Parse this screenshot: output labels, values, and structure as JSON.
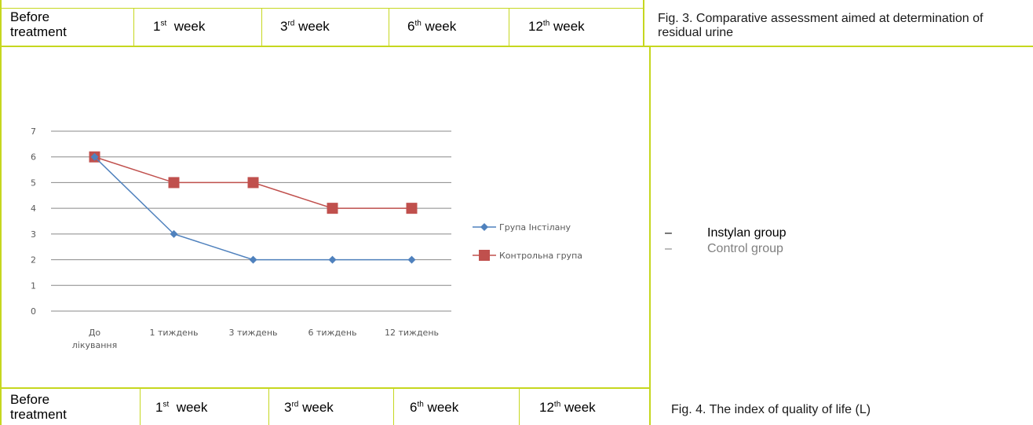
{
  "top_row": {
    "cells": [
      {
        "line1": "Before",
        "line2": "treatment"
      },
      {
        "num": "1",
        "sup": "st",
        "word": "week"
      },
      {
        "num": "3",
        "sup": "rd",
        "word": "week"
      },
      {
        "num": "6",
        "sup": "th",
        "word": "week"
      },
      {
        "num": "12",
        "sup": "th",
        "word": "week"
      }
    ],
    "caption": "Fig. 3. Comparative assessment aimed at determination of residual urine"
  },
  "bottom_row": {
    "cells": [
      {
        "line1": "Before",
        "line2": "treatment"
      },
      {
        "num": "1",
        "sup": "st",
        "word": "week"
      },
      {
        "num": "3",
        "sup": "rd",
        "word": "week"
      },
      {
        "num": "6",
        "sup": "th",
        "word": "week"
      },
      {
        "num": "12",
        "sup": "th",
        "word": "week"
      }
    ],
    "caption": "Fig. 4. The index of quality of life (L)"
  },
  "legend_translation": {
    "items": [
      {
        "dash": "–",
        "label": "Instylan group",
        "color": "#000000"
      },
      {
        "dash": "–",
        "label": "Control group",
        "color": "#808080"
      }
    ]
  },
  "chart_data": {
    "type": "line",
    "categories": [
      "До лікування",
      "1 тиждень",
      "3 тиждень",
      "6 тиждень",
      "12 тиждень"
    ],
    "category_lines": [
      [
        "До",
        "лікування"
      ],
      [
        "1 тиждень"
      ],
      [
        "3 тиждень"
      ],
      [
        "6 тиждень"
      ],
      [
        "12 тиждень"
      ]
    ],
    "yticks": [
      "0",
      "1",
      "2",
      "3",
      "4",
      "5",
      "6",
      "7"
    ],
    "ylim": [
      0,
      7
    ],
    "grid": true,
    "legend_position": "right",
    "series": [
      {
        "name": "Група Інстілану",
        "values": [
          6,
          3,
          2,
          2,
          2
        ],
        "color": "#4f81bd",
        "marker": "diamond"
      },
      {
        "name": "Контрольна група",
        "values": [
          6,
          5,
          5,
          4,
          4
        ],
        "color": "#c0504d",
        "marker": "square"
      }
    ]
  },
  "colors": {
    "rule": "#c6d71f",
    "gridline": "#888888"
  }
}
